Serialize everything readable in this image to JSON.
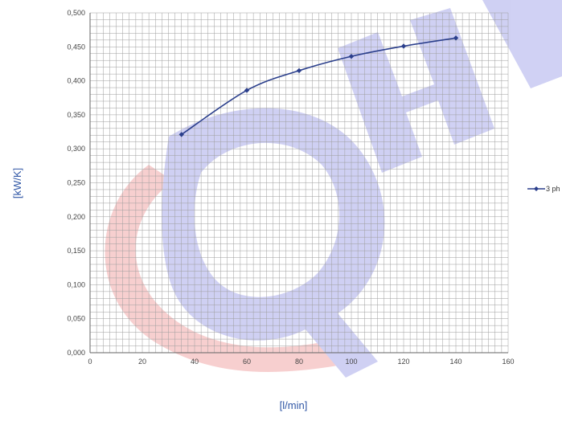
{
  "colors": {
    "series": "#2b3f8c",
    "grid": "#9e9e9e",
    "axis_title": "#2f56a5",
    "watermark_blue": "#3b3fd0",
    "watermark_red": "#e23b3b"
  },
  "chart_data": {
    "type": "line",
    "xlabel": "[l/min]",
    "ylabel": "[kW/K]",
    "xlim": [
      0,
      160
    ],
    "ylim": [
      0,
      0.5
    ],
    "x_ticks": [
      "0",
      "20",
      "40",
      "60",
      "80",
      "100",
      "120",
      "140",
      "160"
    ],
    "y_ticks": [
      "0,000",
      "0,050",
      "0,100",
      "0,150",
      "0,200",
      "0,250",
      "0,300",
      "0,350",
      "0,400",
      "0,450",
      "0,500"
    ],
    "grid": true,
    "legend_position": "right",
    "series": [
      {
        "name": "3 ph",
        "marker": "diamond",
        "points": [
          {
            "x": 35,
            "y": 0.321
          },
          {
            "x": 60,
            "y": 0.386
          },
          {
            "x": 80,
            "y": 0.415
          },
          {
            "x": 100,
            "y": 0.436
          },
          {
            "x": 120,
            "y": 0.451
          },
          {
            "x": 140,
            "y": 0.463
          }
        ]
      }
    ]
  }
}
